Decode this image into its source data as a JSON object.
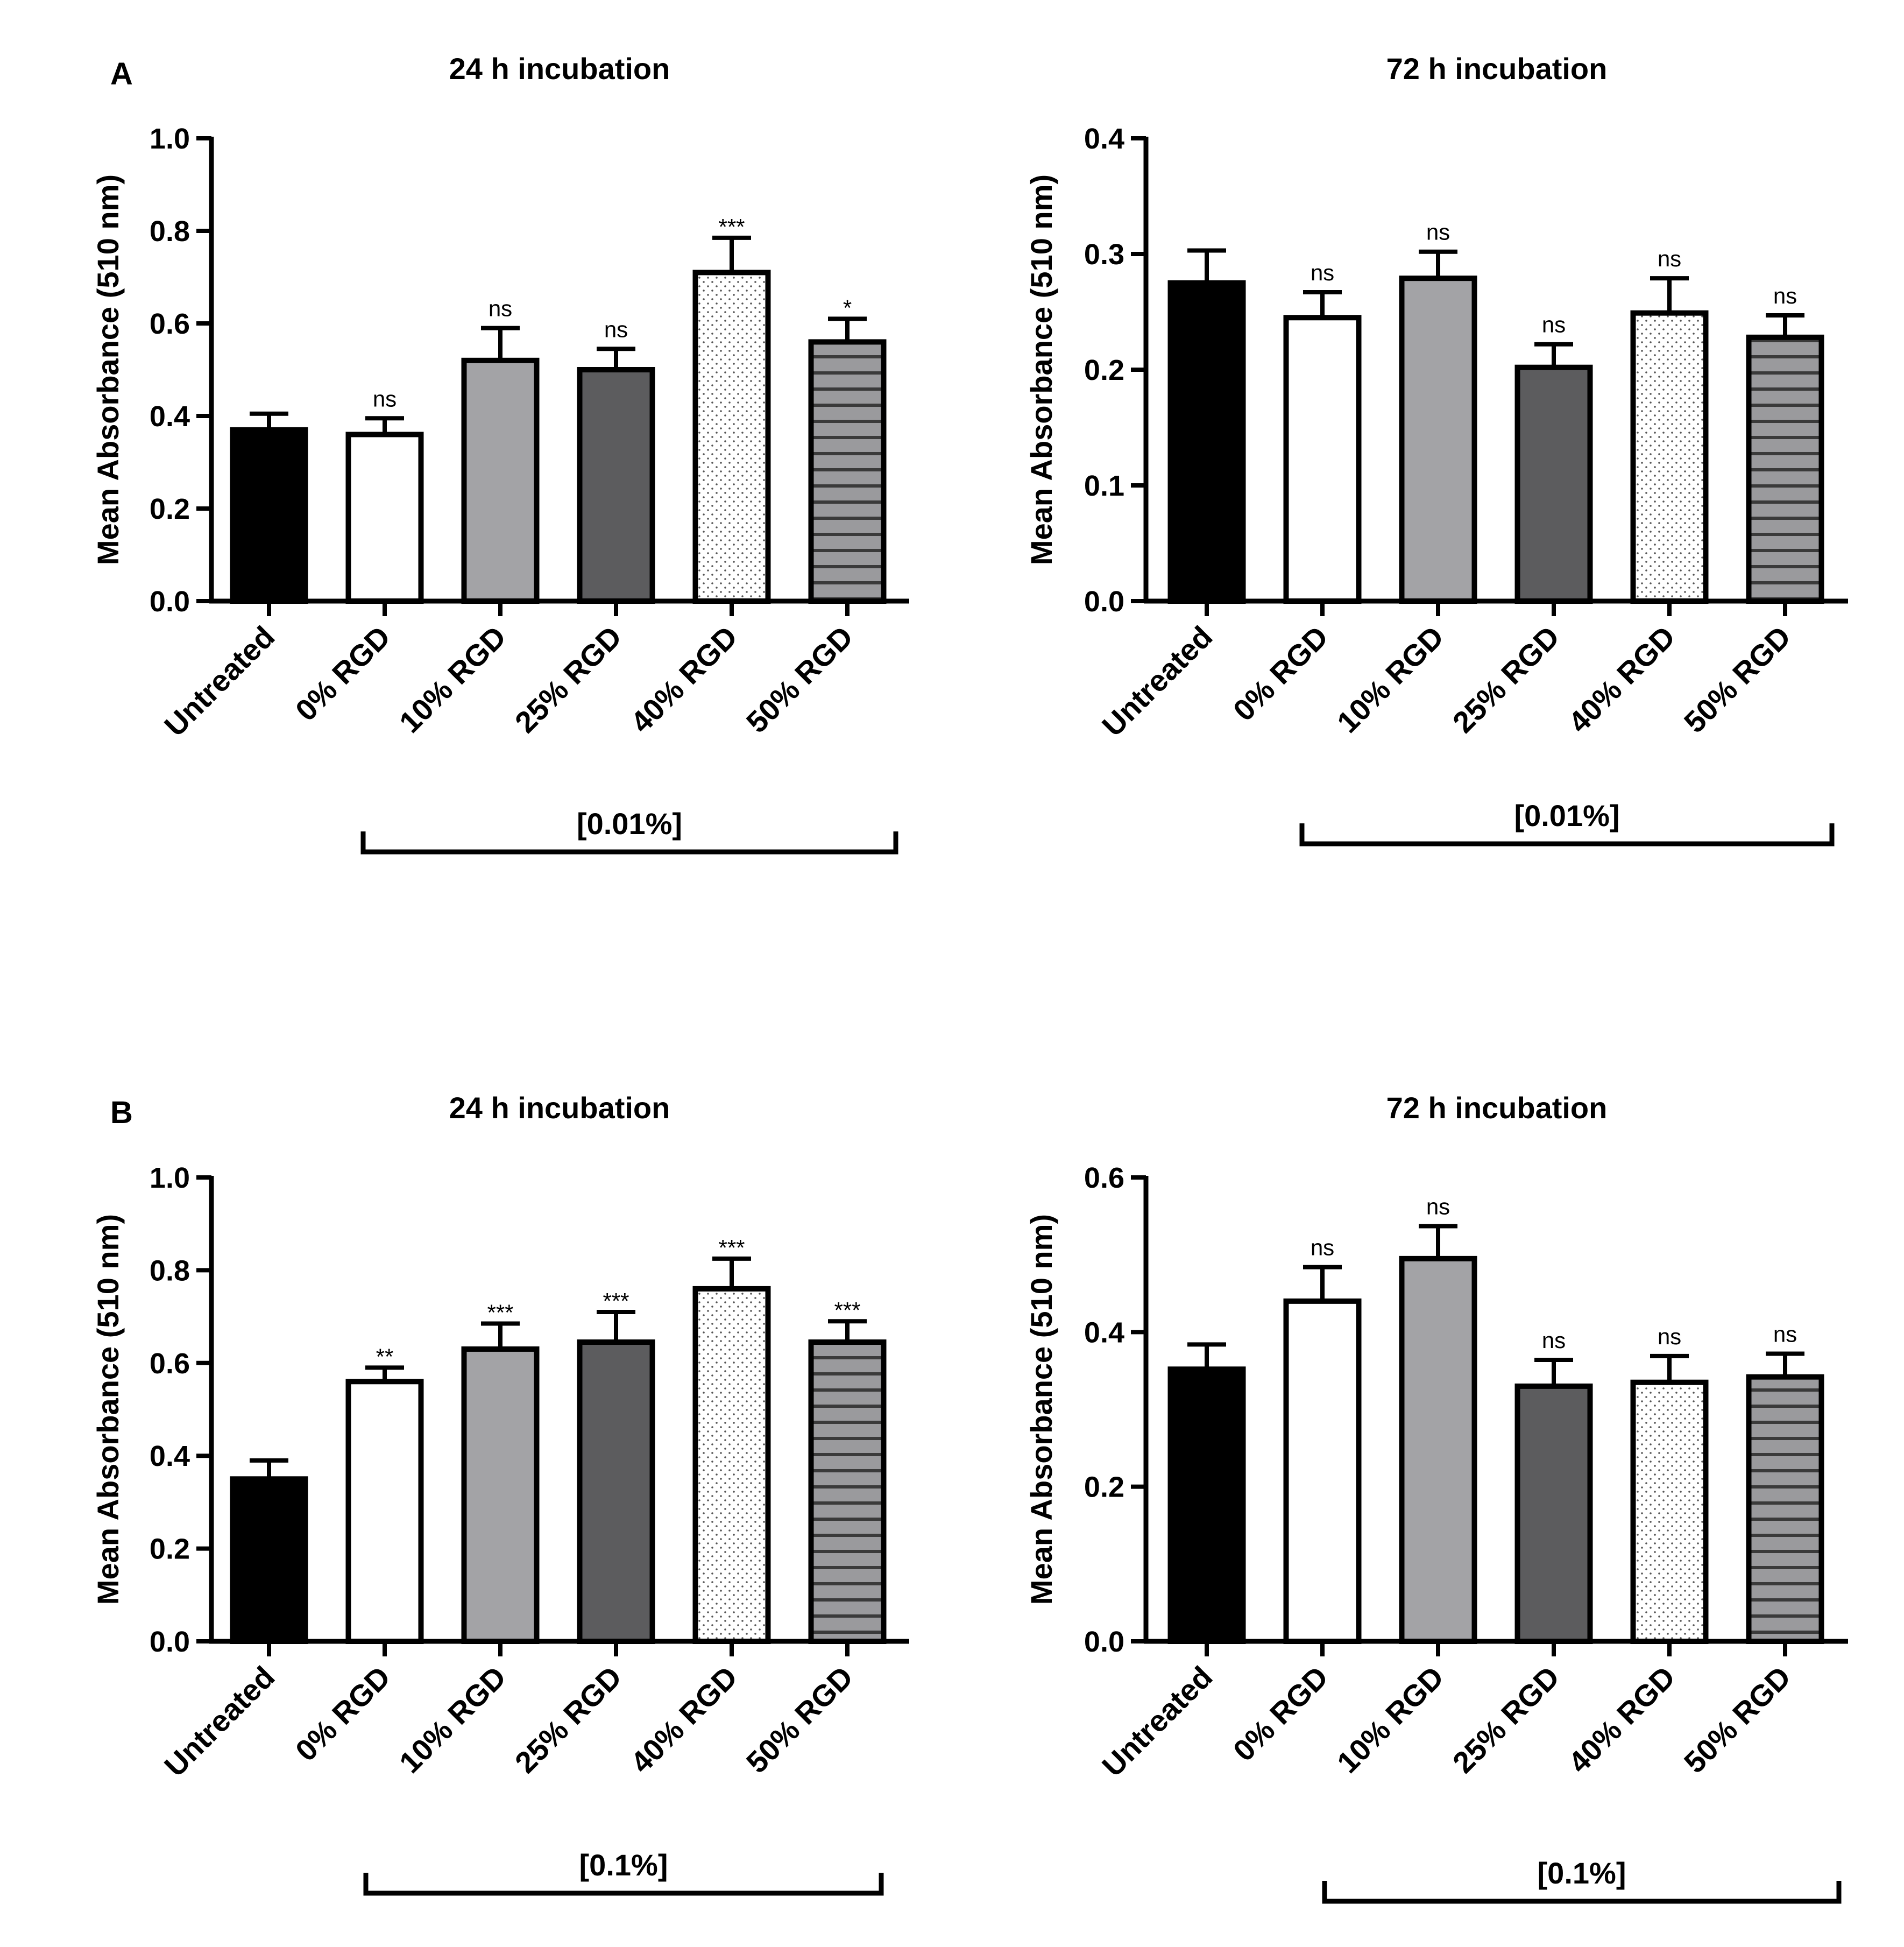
{
  "panels": [
    {
      "letter": "A",
      "chart_indices": [
        0,
        1
      ]
    },
    {
      "letter": "B",
      "chart_indices": [
        2,
        3
      ]
    }
  ],
  "colors": {
    "untreated": "#000000",
    "rgd0": "#ffffff",
    "rgd10": "#a3a3a6",
    "rgd25": "#5c5c5e",
    "rgd40": "#ffffff",
    "rgd50": "#9a9a9d",
    "axis": "#000000"
  },
  "chart_data": [
    {
      "type": "bar",
      "panel": "A",
      "title": "24 h incubation",
      "ylabel": "Mean Absorbance (510 nm)",
      "ylim": [
        0,
        1.0
      ],
      "yticks": [
        "0.0",
        "0.2",
        "0.4",
        "0.6",
        "0.8",
        "1.0"
      ],
      "categories": [
        "Untreated",
        "0% RGD",
        "10% RGD",
        "25% RGD",
        "40% RGD",
        "50% RGD"
      ],
      "values": [
        0.37,
        0.36,
        0.52,
        0.5,
        0.71,
        0.56
      ],
      "errors": [
        0.035,
        0.035,
        0.07,
        0.045,
        0.075,
        0.05
      ],
      "significance": [
        "",
        "ns",
        "ns",
        "ns",
        "***",
        "*"
      ],
      "bracket_label": "[0.01%]"
    },
    {
      "type": "bar",
      "panel": "A",
      "title": "72 h incubation",
      "ylabel": "Mean Absorbance (510 nm)",
      "ylim": [
        0,
        0.4
      ],
      "yticks": [
        "0.0",
        "0.1",
        "0.2",
        "0.3",
        "0.4"
      ],
      "categories": [
        "Untreated",
        "0% RGD",
        "10% RGD",
        "25% RGD",
        "40% RGD",
        "50% RGD"
      ],
      "values": [
        0.275,
        0.245,
        0.279,
        0.202,
        0.249,
        0.228
      ],
      "errors": [
        0.028,
        0.022,
        0.023,
        0.02,
        0.03,
        0.019
      ],
      "significance": [
        "",
        "ns",
        "ns",
        "ns",
        "ns",
        "ns"
      ],
      "bracket_label": "[0.01%]"
    },
    {
      "type": "bar",
      "panel": "B",
      "title": "24 h incubation",
      "ylabel": "Mean Absorbance (510 nm)",
      "ylim": [
        0,
        1.0
      ],
      "yticks": [
        "0.0",
        "0.2",
        "0.4",
        "0.6",
        "0.8",
        "1.0"
      ],
      "categories": [
        "Untreated",
        "0% RGD",
        "10% RGD",
        "25% RGD",
        "40% RGD",
        "50% RGD"
      ],
      "values": [
        0.35,
        0.56,
        0.63,
        0.645,
        0.76,
        0.645
      ],
      "errors": [
        0.04,
        0.03,
        0.055,
        0.065,
        0.065,
        0.045
      ],
      "significance": [
        "",
        "**",
        "***",
        "***",
        "***",
        "***"
      ],
      "bracket_label": "[0.1%]"
    },
    {
      "type": "bar",
      "panel": "B",
      "title": "72 h incubation",
      "ylabel": "Mean Absorbance (510 nm)",
      "ylim": [
        0,
        0.6
      ],
      "yticks": [
        "0.0",
        "0.2",
        "0.4",
        "0.6"
      ],
      "categories": [
        "Untreated",
        "0% RGD",
        "10% RGD",
        "25% RGD",
        "40% RGD",
        "50% RGD"
      ],
      "values": [
        0.352,
        0.44,
        0.495,
        0.33,
        0.335,
        0.342
      ],
      "errors": [
        0.032,
        0.044,
        0.042,
        0.034,
        0.034,
        0.03
      ],
      "significance": [
        "",
        "ns",
        "ns",
        "ns",
        "ns",
        "ns"
      ],
      "bracket_label": "[0.1%]"
    }
  ]
}
